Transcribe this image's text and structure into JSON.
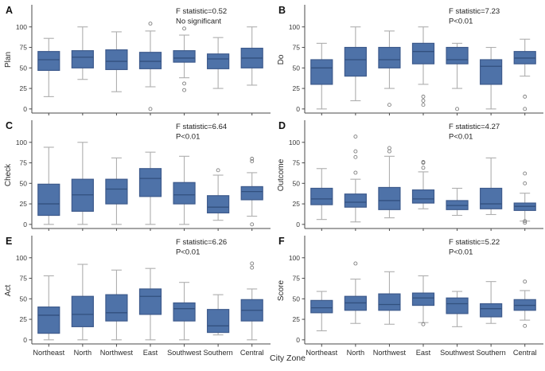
{
  "figure": {
    "xlabel": "City Zone"
  },
  "chart_data": {
    "type": "boxplot",
    "layout": "2x3-grid",
    "categories": [
      "Northeast",
      "North",
      "Northwest",
      "East",
      "Southwest",
      "Southern",
      "Central"
    ],
    "xlabel": "City Zone",
    "yticks": [
      0,
      25,
      50,
      75,
      100
    ],
    "ylim": [
      -5,
      125
    ],
    "colors": {
      "box_fill": "#4e72a8",
      "box_edge": "#3d5a8c",
      "median": "#32507e",
      "whisker": "#aeaeae",
      "outlier": "#7f7f7f",
      "spine": "#4a4a4a",
      "tick_text": "#3a3a3a",
      "annotation_text": "#222222",
      "panel_letter": "#111111"
    },
    "panels": [
      {
        "label": "A",
        "ylabel": "Plan",
        "annotation_lines": [
          "F statistic=0.52",
          "No significant"
        ],
        "boxes": [
          {
            "whislo": 15,
            "q1": 47,
            "med": 60,
            "q3": 70,
            "whishi": 86,
            "outliers": []
          },
          {
            "whislo": 36,
            "q1": 50,
            "med": 63,
            "q3": 71,
            "whishi": 100,
            "outliers": []
          },
          {
            "whislo": 21,
            "q1": 48,
            "med": 58,
            "q3": 72,
            "whishi": 94,
            "outliers": []
          },
          {
            "whislo": 27,
            "q1": 49,
            "med": 58,
            "q3": 69,
            "whishi": 95,
            "outliers": [
              104,
              0
            ]
          },
          {
            "whislo": 38,
            "q1": 57,
            "med": 62,
            "q3": 71,
            "whishi": 90,
            "outliers": [
              98,
              31,
              23
            ]
          },
          {
            "whislo": 25,
            "q1": 49,
            "med": 61,
            "q3": 67,
            "whishi": 87,
            "outliers": []
          },
          {
            "whislo": 29,
            "q1": 50,
            "med": 62,
            "q3": 74,
            "whishi": 100,
            "outliers": []
          }
        ]
      },
      {
        "label": "B",
        "ylabel": "Do",
        "annotation_lines": [
          "F statistic=7.23",
          "P<0.01"
        ],
        "boxes": [
          {
            "whislo": 0,
            "q1": 30,
            "med": 50,
            "q3": 60,
            "whishi": 80,
            "outliers": []
          },
          {
            "whislo": 10,
            "q1": 40,
            "med": 60,
            "q3": 75,
            "whishi": 100,
            "outliers": []
          },
          {
            "whislo": 25,
            "q1": 50,
            "med": 60,
            "q3": 75,
            "whishi": 95,
            "outliers": [
              5
            ]
          },
          {
            "whislo": 30,
            "q1": 55,
            "med": 70,
            "q3": 80,
            "whishi": 100,
            "outliers": [
              15,
              10,
              5
            ]
          },
          {
            "whislo": 25,
            "q1": 55,
            "med": 60,
            "q3": 75,
            "whishi": 80,
            "outliers": [
              0
            ]
          },
          {
            "whislo": 0,
            "q1": 30,
            "med": 52,
            "q3": 60,
            "whishi": 75,
            "outliers": []
          },
          {
            "whislo": 40,
            "q1": 55,
            "med": 62,
            "q3": 70,
            "whishi": 85,
            "outliers": [
              15,
              0
            ]
          }
        ]
      },
      {
        "label": "C",
        "ylabel": "Check",
        "annotation_lines": [
          "F statistic=6.64",
          "P<0.01"
        ],
        "boxes": [
          {
            "whislo": 0,
            "q1": 11,
            "med": 25,
            "q3": 49,
            "whishi": 94,
            "outliers": []
          },
          {
            "whislo": 0,
            "q1": 16,
            "med": 36,
            "q3": 55,
            "whishi": 100,
            "outliers": []
          },
          {
            "whislo": 0,
            "q1": 25,
            "med": 43,
            "q3": 55,
            "whishi": 81,
            "outliers": []
          },
          {
            "whislo": 0,
            "q1": 34,
            "med": 56,
            "q3": 68,
            "whishi": 88,
            "outliers": []
          },
          {
            "whislo": 0,
            "q1": 25,
            "med": 36,
            "q3": 51,
            "whishi": 83,
            "outliers": []
          },
          {
            "whislo": 5,
            "q1": 14,
            "med": 21,
            "q3": 35,
            "whishi": 60,
            "outliers": [
              66
            ]
          },
          {
            "whislo": 10,
            "q1": 30,
            "med": 40,
            "q3": 46,
            "whishi": 63,
            "outliers": [
              80,
              77,
              0
            ]
          }
        ]
      },
      {
        "label": "D",
        "ylabel": "Outcome",
        "annotation_lines": [
          "F statistic=4.27",
          "P<0.01"
        ],
        "boxes": [
          {
            "whislo": 6,
            "q1": 24,
            "med": 31,
            "q3": 44,
            "whishi": 68,
            "outliers": []
          },
          {
            "whislo": 3,
            "q1": 21,
            "med": 27,
            "q3": 37,
            "whishi": 55,
            "outliers": [
              107,
              89,
              82,
              63
            ]
          },
          {
            "whislo": 8,
            "q1": 18,
            "med": 29,
            "q3": 45,
            "whishi": 83,
            "outliers": [
              93,
              89
            ]
          },
          {
            "whislo": 19,
            "q1": 26,
            "med": 31,
            "q3": 42,
            "whishi": 64,
            "outliers": [
              76,
              75,
              69
            ]
          },
          {
            "whislo": 11,
            "q1": 18,
            "med": 23,
            "q3": 29,
            "whishi": 44,
            "outliers": []
          },
          {
            "whislo": 12,
            "q1": 19,
            "med": 25,
            "q3": 44,
            "whishi": 81,
            "outliers": []
          },
          {
            "whislo": 4,
            "q1": 17,
            "med": 22,
            "q3": 26,
            "whishi": 38,
            "outliers": [
              62,
              50,
              4,
              2
            ]
          }
        ]
      },
      {
        "label": "E",
        "ylabel": "Act",
        "annotation_lines": [
          "F statistic=6.26",
          "P<0.01"
        ],
        "boxes": [
          {
            "whislo": 0,
            "q1": 8,
            "med": 30,
            "q3": 40,
            "whishi": 78,
            "outliers": []
          },
          {
            "whislo": 0,
            "q1": 16,
            "med": 31,
            "q3": 53,
            "whishi": 92,
            "outliers": []
          },
          {
            "whislo": 0,
            "q1": 23,
            "med": 33,
            "q3": 55,
            "whishi": 85,
            "outliers": []
          },
          {
            "whislo": 0,
            "q1": 31,
            "med": 53,
            "q3": 62,
            "whishi": 87,
            "outliers": []
          },
          {
            "whislo": 0,
            "q1": 23,
            "med": 38,
            "q3": 45,
            "whishi": 70,
            "outliers": []
          },
          {
            "whislo": 6,
            "q1": 9,
            "med": 17,
            "q3": 37,
            "whishi": 55,
            "outliers": []
          },
          {
            "whislo": 0,
            "q1": 23,
            "med": 36,
            "q3": 49,
            "whishi": 62,
            "outliers": [
              93,
              88
            ]
          }
        ]
      },
      {
        "label": "F",
        "ylabel": "Score",
        "annotation_lines": [
          "F statistic=5.22",
          "P<0.01"
        ],
        "boxes": [
          {
            "whislo": 11,
            "q1": 33,
            "med": 39,
            "q3": 48,
            "whishi": 59,
            "outliers": []
          },
          {
            "whislo": 20,
            "q1": 36,
            "med": 45,
            "q3": 53,
            "whishi": 74,
            "outliers": [
              93
            ]
          },
          {
            "whislo": 19,
            "q1": 36,
            "med": 43,
            "q3": 56,
            "whishi": 83,
            "outliers": []
          },
          {
            "whislo": 21,
            "q1": 42,
            "med": 51,
            "q3": 57,
            "whishi": 78,
            "outliers": [
              19
            ]
          },
          {
            "whislo": 16,
            "q1": 32,
            "med": 44,
            "q3": 51,
            "whishi": 59,
            "outliers": []
          },
          {
            "whislo": 20,
            "q1": 28,
            "med": 38,
            "q3": 44,
            "whishi": 71,
            "outliers": []
          },
          {
            "whislo": 24,
            "q1": 36,
            "med": 42,
            "q3": 49,
            "whishi": 60,
            "outliers": [
              71,
              17
            ]
          }
        ]
      }
    ]
  }
}
